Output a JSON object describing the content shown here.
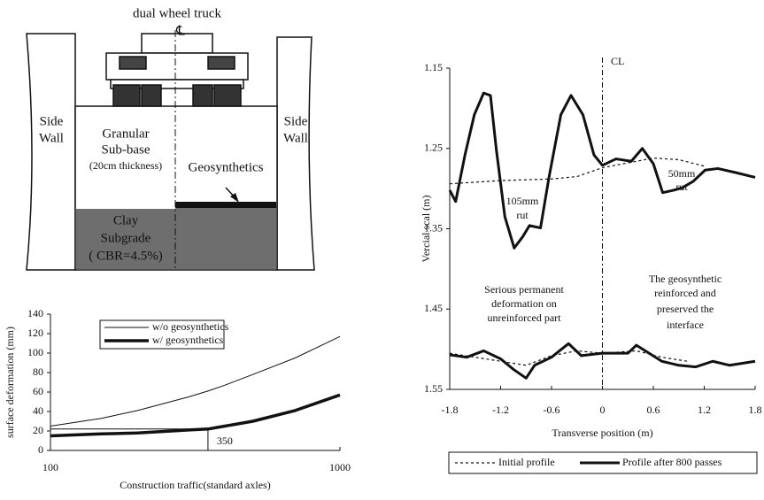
{
  "diagram": {
    "truck": "dual wheel truck",
    "centerline": "℄",
    "left_wall": [
      "Side",
      "Wall"
    ],
    "right_wall": [
      "Side",
      "Wall"
    ],
    "subbase": [
      "Granular",
      "Sub-base",
      "(20cm thickness)"
    ],
    "geosynthetics": "Geosynthetics",
    "subgrade": [
      "Clay",
      "Subgrade",
      "( CBR=4.5%)"
    ]
  },
  "chart_data": [
    {
      "type": "line",
      "xlabel": "Construction traffic(standard axles)",
      "ylabel": "surface deformation (mm)",
      "xscale": "log",
      "xlim": [
        100,
        1000
      ],
      "xticks": [
        100,
        1000
      ],
      "ylim": [
        0,
        140
      ],
      "yticks": [
        0,
        20,
        40,
        60,
        80,
        100,
        120,
        140
      ],
      "x": [
        100,
        150,
        200,
        300,
        350,
        400,
        500,
        700,
        1000
      ],
      "series": [
        {
          "name": "w/o geosynthetics",
          "color": "#111",
          "line_width": 1,
          "values": [
            25,
            33,
            41,
            55,
            61,
            67,
            78,
            95,
            117
          ]
        },
        {
          "name": "w/  geosynthetics",
          "color": "#111",
          "line_width": 3.5,
          "values": [
            15,
            17,
            18,
            21,
            22,
            25,
            30,
            41,
            57
          ]
        }
      ],
      "marker_x": 350,
      "legend": "upper left"
    },
    {
      "type": "line",
      "xlabel": "Transverse position (m)",
      "ylabel": "Vercial scal (m)",
      "xlim": [
        -1.8,
        1.8
      ],
      "xticks": [
        -1.8,
        -1.2,
        -0.6,
        0,
        0.6,
        1.2,
        1.8
      ],
      "ylim": [
        1.55,
        1.15
      ],
      "yticks": [
        1.15,
        1.25,
        1.35,
        1.45,
        1.55
      ],
      "annotations": [
        "CL",
        "105mm",
        "rut",
        "50mm",
        "rut",
        "Serious permanent",
        "deformation on",
        "unreinforced part",
        "The geosynthetic",
        "reinforced and",
        "preserved the",
        "interface"
      ],
      "series": [
        {
          "name": "Initial profile",
          "color": "#111",
          "line_width": 1.2,
          "dash": true,
          "x": [
            -1.8,
            -1.2,
            -0.6,
            -0.3,
            0,
            0.3,
            0.6,
            0.9,
            1.2
          ],
          "values": [
            1.294,
            1.29,
            1.288,
            1.285,
            1.274,
            1.268,
            1.262,
            1.264,
            1.272
          ]
        },
        {
          "name": "Profile after 800 passes",
          "color": "#111",
          "line_width": 3,
          "x": [
            -1.8,
            -1.73,
            -1.62,
            -1.51,
            -1.4,
            -1.32,
            -1.25,
            -1.15,
            -1.04,
            -0.94,
            -0.86,
            -0.73,
            -0.63,
            -0.49,
            -0.37,
            -0.23,
            -0.1,
            0,
            0.16,
            0.34,
            0.47,
            0.6,
            0.71,
            0.84,
            0.94,
            1.07,
            1.21,
            1.36,
            1.57,
            1.8
          ],
          "values": [
            1.302,
            1.316,
            1.258,
            1.208,
            1.181,
            1.184,
            1.252,
            1.335,
            1.374,
            1.36,
            1.346,
            1.349,
            1.286,
            1.208,
            1.184,
            1.208,
            1.258,
            1.271,
            1.263,
            1.266,
            1.25,
            1.269,
            1.305,
            1.302,
            1.299,
            1.291,
            1.277,
            1.275,
            1.28,
            1.286
          ]
        },
        {
          "color": "#111",
          "line_width": 1.2,
          "dash": true,
          "x": [
            -1.8,
            -1.2,
            -0.9,
            -0.6,
            -0.3,
            0,
            0.4,
            0.7,
            1.0
          ],
          "values": [
            1.505,
            1.515,
            1.52,
            1.508,
            1.502,
            1.505,
            1.502,
            1.51,
            1.515
          ]
        },
        {
          "color": "#111",
          "line_width": 3,
          "x": [
            -1.8,
            -1.6,
            -1.4,
            -1.2,
            -1.05,
            -0.9,
            -0.8,
            -0.6,
            -0.4,
            -0.25,
            0,
            0.3,
            0.4,
            0.55,
            0.7,
            0.9,
            1.1,
            1.3,
            1.5,
            1.8
          ],
          "values": [
            1.507,
            1.51,
            1.502,
            1.512,
            1.525,
            1.536,
            1.52,
            1.51,
            1.493,
            1.508,
            1.505,
            1.505,
            1.495,
            1.505,
            1.515,
            1.52,
            1.522,
            1.515,
            1.52,
            1.515
          ]
        }
      ],
      "legend": "bottom"
    }
  ]
}
